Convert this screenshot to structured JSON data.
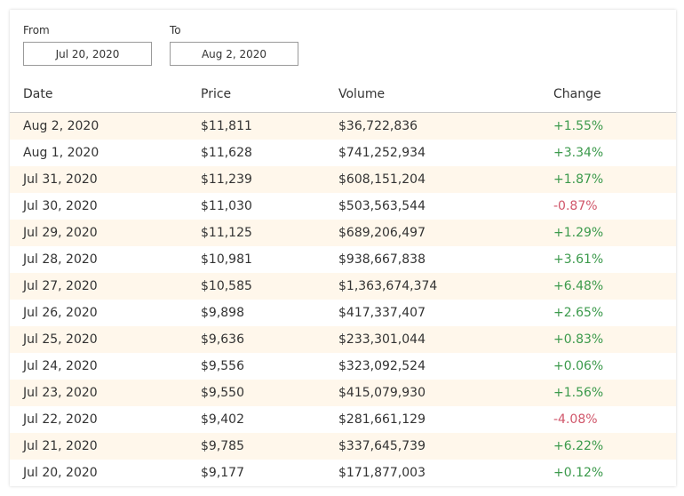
{
  "filters": {
    "from_label": "From",
    "from_value": "Jul 20, 2020",
    "to_label": "To",
    "to_value": "Aug 2, 2020"
  },
  "table": {
    "headers": {
      "date": "Date",
      "price": "Price",
      "volume": "Volume",
      "change": "Change"
    },
    "rows": [
      {
        "date": "Aug 2, 2020",
        "price": "$11,811",
        "volume": "$36,722,836",
        "change": "+1.55%",
        "direction": "up"
      },
      {
        "date": "Aug 1, 2020",
        "price": "$11,628",
        "volume": "$741,252,934",
        "change": "+3.34%",
        "direction": "up"
      },
      {
        "date": "Jul 31, 2020",
        "price": "$11,239",
        "volume": "$608,151,204",
        "change": "+1.87%",
        "direction": "up"
      },
      {
        "date": "Jul 30, 2020",
        "price": "$11,030",
        "volume": "$503,563,544",
        "change": "-0.87%",
        "direction": "down"
      },
      {
        "date": "Jul 29, 2020",
        "price": "$11,125",
        "volume": "$689,206,497",
        "change": "+1.29%",
        "direction": "up"
      },
      {
        "date": "Jul 28, 2020",
        "price": "$10,981",
        "volume": "$938,667,838",
        "change": "+3.61%",
        "direction": "up"
      },
      {
        "date": "Jul 27, 2020",
        "price": "$10,585",
        "volume": "$1,363,674,374",
        "change": "+6.48%",
        "direction": "up"
      },
      {
        "date": "Jul 26, 2020",
        "price": "$9,898",
        "volume": "$417,337,407",
        "change": "+2.65%",
        "direction": "up"
      },
      {
        "date": "Jul 25, 2020",
        "price": "$9,636",
        "volume": "$233,301,044",
        "change": "+0.83%",
        "direction": "up"
      },
      {
        "date": "Jul 24, 2020",
        "price": "$9,556",
        "volume": "$323,092,524",
        "change": "+0.06%",
        "direction": "up"
      },
      {
        "date": "Jul 23, 2020",
        "price": "$9,550",
        "volume": "$415,079,930",
        "change": "+1.56%",
        "direction": "up"
      },
      {
        "date": "Jul 22, 2020",
        "price": "$9,402",
        "volume": "$281,661,129",
        "change": "-4.08%",
        "direction": "down"
      },
      {
        "date": "Jul 21, 2020",
        "price": "$9,785",
        "volume": "$337,645,739",
        "change": "+6.22%",
        "direction": "up"
      },
      {
        "date": "Jul 20, 2020",
        "price": "$9,177",
        "volume": "$171,877,003",
        "change": "+0.12%",
        "direction": "up"
      }
    ]
  },
  "colors": {
    "row_alt_bg": "#fff7eb",
    "positive": "#3c9a4c",
    "negative": "#d0566a"
  }
}
